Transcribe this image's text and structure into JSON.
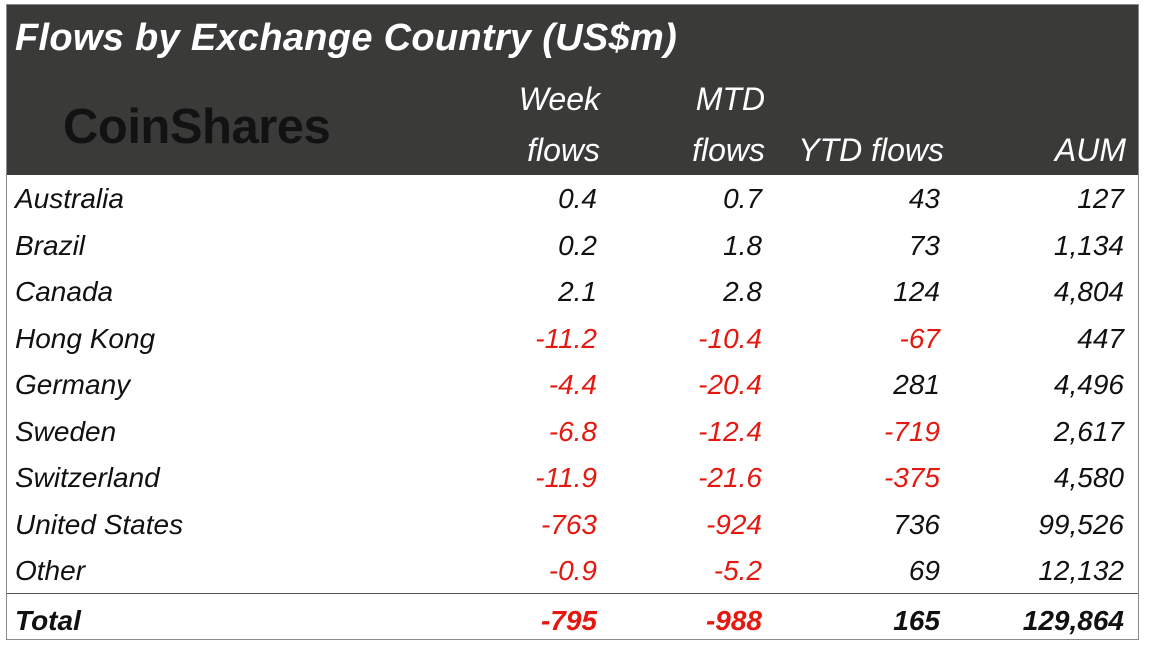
{
  "title": "Flows by Exchange Country (US$m)",
  "logo": "CoinShares",
  "columns": [
    {
      "line1": "Week",
      "line2": "flows"
    },
    {
      "line1": "MTD",
      "line2": "flows"
    },
    {
      "line1": "",
      "line2": "YTD flows"
    },
    {
      "line1": "",
      "line2": "AUM"
    }
  ],
  "colors": {
    "header_bg": "#3a3a38",
    "negative": "#e4180f",
    "text": "#111111"
  },
  "rows": [
    {
      "country": "Australia",
      "week": "0.4",
      "mtd": "0.7",
      "ytd": "43",
      "aum": "127"
    },
    {
      "country": "Brazil",
      "week": "0.2",
      "mtd": "1.8",
      "ytd": "73",
      "aum": "1,134"
    },
    {
      "country": "Canada",
      "week": "2.1",
      "mtd": "2.8",
      "ytd": "124",
      "aum": "4,804"
    },
    {
      "country": "Hong Kong",
      "week": "-11.2",
      "mtd": "-10.4",
      "ytd": "-67",
      "aum": "447"
    },
    {
      "country": "Germany",
      "week": "-4.4",
      "mtd": "-20.4",
      "ytd": "281",
      "aum": "4,496"
    },
    {
      "country": "Sweden",
      "week": "-6.8",
      "mtd": "-12.4",
      "ytd": "-719",
      "aum": "2,617"
    },
    {
      "country": "Switzerland",
      "week": "-11.9",
      "mtd": "-21.6",
      "ytd": "-375",
      "aum": "4,580"
    },
    {
      "country": "United States",
      "week": "-763",
      "mtd": "-924",
      "ytd": "736",
      "aum": "99,526"
    },
    {
      "country": "Other",
      "week": "-0.9",
      "mtd": "-5.2",
      "ytd": "69",
      "aum": "12,132"
    }
  ],
  "total": {
    "country": "Total",
    "week": "-795",
    "mtd": "-988",
    "ytd": "165",
    "aum": "129,864"
  },
  "chart_data": {
    "type": "table",
    "title": "Flows by Exchange Country (US$m)",
    "columns": [
      "Week flows",
      "MTD flows",
      "YTD flows",
      "AUM"
    ],
    "rows": [
      "Australia",
      "Brazil",
      "Canada",
      "Hong Kong",
      "Germany",
      "Sweden",
      "Switzerland",
      "United States",
      "Other",
      "Total"
    ],
    "values": [
      [
        0.4,
        0.7,
        43,
        127
      ],
      [
        0.2,
        1.8,
        73,
        1134
      ],
      [
        2.1,
        2.8,
        124,
        4804
      ],
      [
        -11.2,
        -10.4,
        -67,
        447
      ],
      [
        -4.4,
        -20.4,
        281,
        4496
      ],
      [
        -6.8,
        -12.4,
        -719,
        2617
      ],
      [
        -11.9,
        -21.6,
        -375,
        4580
      ],
      [
        -763,
        -924,
        736,
        99526
      ],
      [
        -0.9,
        -5.2,
        69,
        12132
      ],
      [
        -795,
        -988,
        165,
        129864
      ]
    ]
  }
}
